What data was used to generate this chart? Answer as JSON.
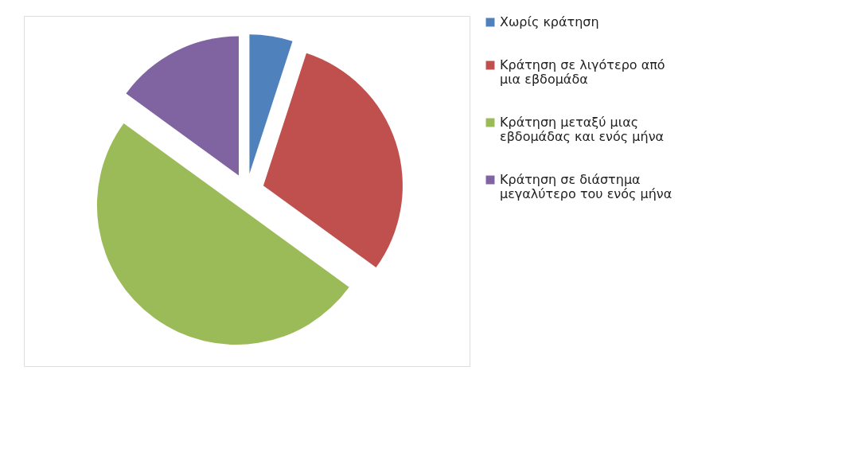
{
  "chart_data": {
    "type": "pie",
    "categories": [
      "Χωρίς κράτηση",
      "Κράτηση σε λιγότερο από μια εβδομάδα",
      "Κράτηση μεταξύ μιας εβδομάδας και ενός μήνα",
      "Κράτηση σε διάστημα μεγαλύτερο του ενός μήνα"
    ],
    "values": [
      5,
      30,
      50,
      15
    ],
    "colors": [
      "#4f81bd",
      "#c0504d",
      "#9bbb59",
      "#8064a2"
    ],
    "legend": "right"
  }
}
